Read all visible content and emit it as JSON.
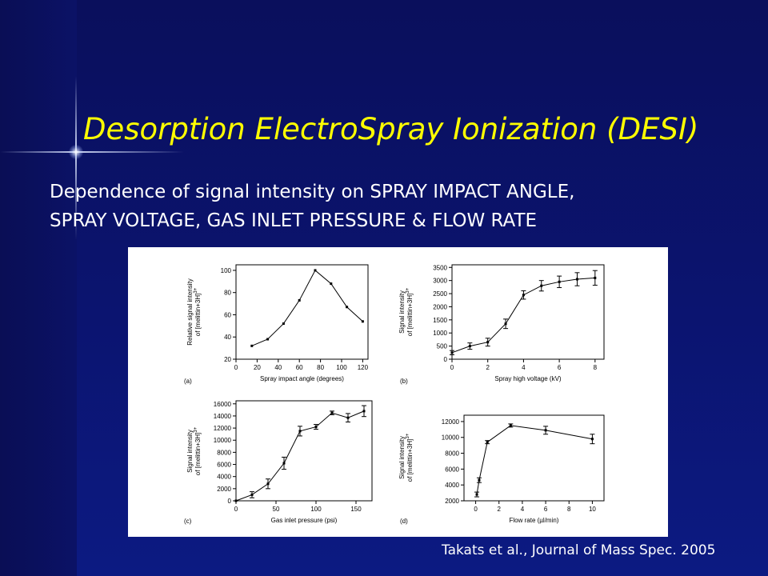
{
  "slide": {
    "title": "Desorption ElectroSpray Ionization (DESI)",
    "subtitle_line1": "Dependence of signal intensity on SPRAY IMPACT ANGLE,",
    "subtitle_line2": "SPRAY VOLTAGE, GAS INLET PRESSURE & FLOW RATE",
    "citation": "Takats et al., Journal of Mass Spec. 2005",
    "colors": {
      "title": "#ffff00",
      "text": "#ffffff",
      "background": "#0b1470"
    }
  },
  "chart_data": [
    {
      "panel": "(a)",
      "type": "line",
      "xlabel": "Spray impact angle (degrees)",
      "ylabel_line1": "Relative signal intensity",
      "ylabel_line2": "of [melittin+3H]",
      "ylabel_sup": "3+",
      "xlim": [
        0,
        125
      ],
      "ylim": [
        20,
        105
      ],
      "xticks": [
        0,
        20,
        40,
        60,
        80,
        100,
        120
      ],
      "yticks": [
        20,
        40,
        60,
        80,
        100
      ],
      "error_bars": false,
      "x": [
        15,
        30,
        45,
        60,
        75,
        90,
        105,
        120
      ],
      "y": [
        32,
        38,
        52,
        73,
        100,
        88,
        67,
        54
      ],
      "err": []
    },
    {
      "panel": "(b)",
      "type": "line",
      "xlabel": "Spray high voltage (kV)",
      "ylabel_line1": "Signal intensity",
      "ylabel_line2": "of [melittin+3H]",
      "ylabel_sup": "3+",
      "xlim": [
        0,
        8.5
      ],
      "ylim": [
        0,
        3600
      ],
      "xticks": [
        0,
        2,
        4,
        6,
        8
      ],
      "yticks": [
        0,
        500,
        1000,
        1500,
        2000,
        2500,
        3000,
        3500
      ],
      "error_bars": true,
      "x": [
        0,
        1,
        2,
        3,
        4,
        5,
        6,
        7,
        8
      ],
      "y": [
        250,
        500,
        650,
        1350,
        2450,
        2800,
        2950,
        3050,
        3100
      ],
      "err": [
        80,
        120,
        150,
        180,
        160,
        200,
        220,
        250,
        280
      ]
    },
    {
      "panel": "(c)",
      "type": "line",
      "xlabel": "Gas inlet pressure (psi)",
      "ylabel_line1": "Signal intensity",
      "ylabel_line2": "of [melittin+3H]",
      "ylabel_sup": "3+",
      "xlim": [
        0,
        170
      ],
      "ylim": [
        0,
        16500
      ],
      "xticks": [
        0,
        50,
        100,
        150
      ],
      "yticks": [
        0,
        2000,
        4000,
        6000,
        8000,
        10000,
        12000,
        14000,
        16000
      ],
      "error_bars": true,
      "x": [
        0,
        20,
        40,
        60,
        80,
        100,
        120,
        140,
        160
      ],
      "y": [
        0,
        1000,
        2800,
        6200,
        11500,
        12200,
        14500,
        13700,
        14800
      ],
      "err": [
        0,
        500,
        800,
        1000,
        800,
        400,
        300,
        700,
        900
      ]
    },
    {
      "panel": "(d)",
      "type": "line",
      "xlabel": "Flow rate (µl/min)",
      "ylabel_line1": "Signal intensity",
      "ylabel_line2": "of [melittin+3H]",
      "ylabel_sup": "3+",
      "xlim": [
        -1,
        11
      ],
      "ylim": [
        2000,
        12800
      ],
      "xticks": [
        0,
        2,
        4,
        6,
        8,
        10
      ],
      "yticks": [
        2000,
        4000,
        6000,
        8000,
        10000,
        12000
      ],
      "error_bars": true,
      "x": [
        0.1,
        0.3,
        1,
        3,
        6,
        10
      ],
      "y": [
        2800,
        4600,
        9400,
        11500,
        10900,
        9800
      ],
      "err": [
        300,
        300,
        200,
        200,
        500,
        600
      ]
    }
  ]
}
